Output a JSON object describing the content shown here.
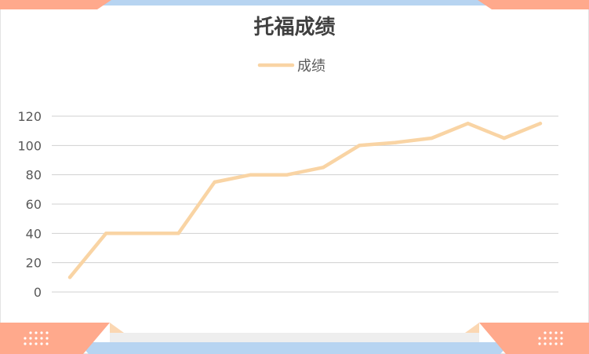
{
  "colors": {
    "line": "#F9D4A4",
    "grid": "#D0D0D0",
    "axis_text": "#595959",
    "title": "#404040",
    "salmon": "#FFA98C",
    "peach": "#FBD7B2",
    "blue": "#B7D4F1",
    "light_gray": "#EEEEEE",
    "frame": "#E3E3E3"
  },
  "chart_data": {
    "type": "line",
    "title": "托福成绩",
    "legend_position": "top-center",
    "grid": true,
    "ylim": [
      0,
      120
    ],
    "y_ticks": [
      "0",
      "20",
      "40",
      "60",
      "80",
      "100",
      "120"
    ],
    "x": [
      1,
      2,
      3,
      4,
      5,
      6,
      7,
      8,
      9,
      10,
      11,
      12,
      13,
      14
    ],
    "series": [
      {
        "name": "成绩",
        "values": [
          10,
          40,
          40,
          40,
          75,
          80,
          80,
          85,
          100,
          102,
          105,
          115,
          105,
          115
        ]
      }
    ]
  }
}
